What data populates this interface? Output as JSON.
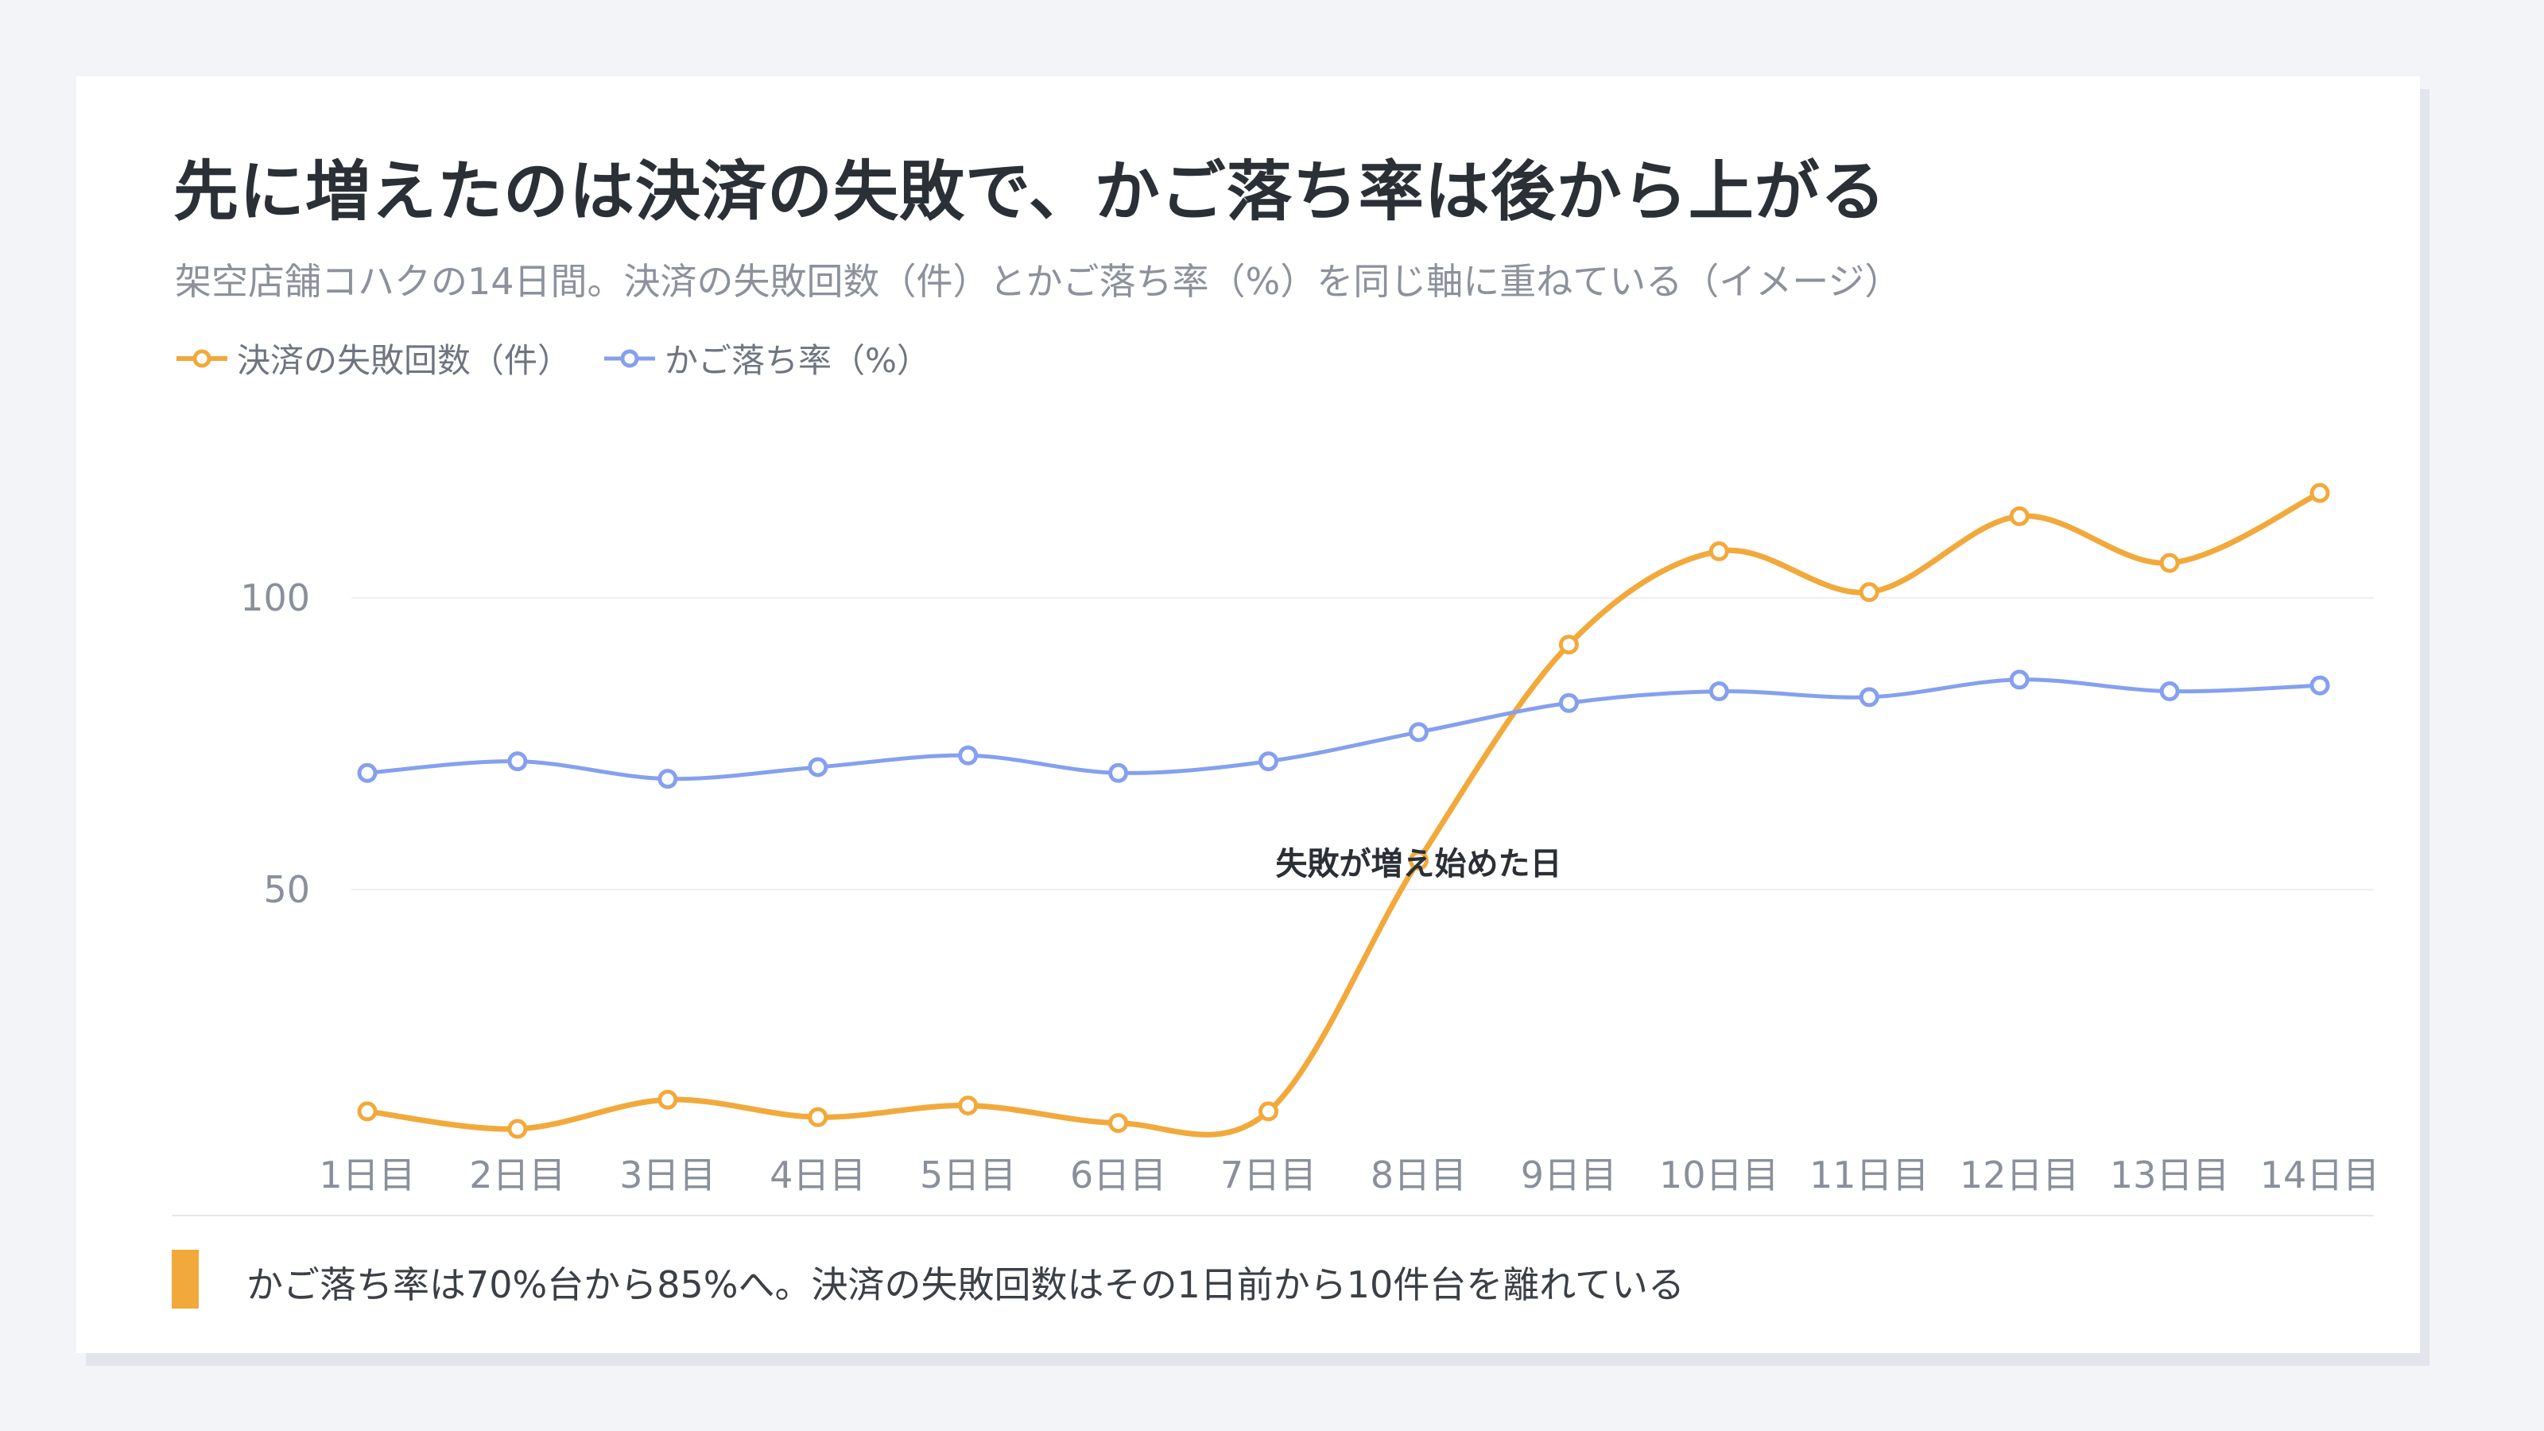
{
  "title": "先に増えたのは決済の失敗で、かご落ち率は後から上がる",
  "subtitle": "架空店舗コハクの14日間。決済の失敗回数（件）とかご落ち率（%）を同じ軸に重ねている（イメージ）",
  "note": "かご落ち率は70%台から85%へ。決済の失敗回数はその1日前から10件台を離れている",
  "colors": {
    "failures": "#f2a93b",
    "abandon": "#85a0ee",
    "grid": "#eceef2",
    "accent": "#f2a93b"
  },
  "chart_data": {
    "type": "line",
    "categories": [
      "1日目",
      "2日目",
      "3日目",
      "4日目",
      "5日目",
      "6日目",
      "7日目",
      "8日目",
      "9日目",
      "10日目",
      "11日目",
      "12日目",
      "13日目",
      "14日目"
    ],
    "series": [
      {
        "name": "決済の失敗回数（件）",
        "values": [
          12,
          9,
          14,
          11,
          13,
          10,
          12,
          55,
          92,
          108,
          101,
          114,
          106,
          118
        ]
      },
      {
        "name": "かご落ち率（%）",
        "values": [
          70,
          72,
          69,
          71,
          73,
          70,
          72,
          77,
          82,
          84,
          83,
          86,
          84,
          85
        ]
      }
    ],
    "yticks": [
      50,
      100
    ],
    "ylim": [
      0,
      124
    ],
    "grid": true,
    "legend": "top-left",
    "annotation": {
      "label": "失敗が増え始めた日",
      "category": "8日目"
    }
  }
}
